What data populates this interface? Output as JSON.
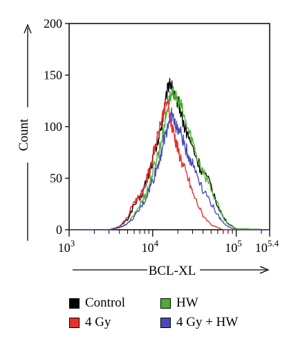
{
  "chart_data": {
    "type": "line",
    "title": "",
    "xlabel": "BCL-XL",
    "ylabel": "Count",
    "x_scale": "log",
    "xlim": [
      1000,
      251189
    ],
    "ylim": [
      0,
      200
    ],
    "y_ticks": [
      0,
      50,
      100,
      150,
      200
    ],
    "x_ticks": [
      {
        "value": 1000,
        "label": "10",
        "exponent": "3"
      },
      {
        "value": 10000,
        "label": "10",
        "exponent": "4"
      },
      {
        "value": 100000,
        "label": "10",
        "exponent": "5"
      },
      {
        "value": 251189,
        "label": "10",
        "exponent": "5.4"
      }
    ],
    "grid": false,
    "legend_position": "bottom",
    "series": [
      {
        "name": "Control",
        "color": "#000000",
        "x": [
          1000,
          3000,
          4000,
          5000,
          6000,
          7000,
          8000,
          9000,
          10000,
          11000,
          12000,
          13000,
          14000,
          15000,
          16000,
          17000,
          18000,
          19000,
          20000,
          22000,
          24000,
          27000,
          30000,
          35000,
          40000,
          50000,
          60000,
          70000,
          80000,
          100000,
          251189
        ],
        "y": [
          0,
          0,
          3,
          10,
          24,
          30,
          42,
          55,
          68,
          80,
          90,
          105,
          120,
          135,
          145,
          138,
          130,
          122,
          128,
          112,
          100,
          90,
          80,
          65,
          55,
          42,
          24,
          12,
          6,
          1,
          0
        ]
      },
      {
        "name": "HW",
        "color": "#4caf32",
        "x": [
          1000,
          3000,
          4000,
          5000,
          6000,
          7000,
          8000,
          9000,
          10000,
          11000,
          12000,
          13000,
          14000,
          15000,
          16000,
          17000,
          18000,
          19000,
          20000,
          22000,
          24000,
          27000,
          30000,
          35000,
          40000,
          50000,
          60000,
          70000,
          80000,
          100000,
          251189
        ],
        "y": [
          0,
          0,
          2,
          6,
          14,
          24,
          33,
          42,
          55,
          68,
          78,
          90,
          105,
          118,
          128,
          130,
          134,
          128,
          125,
          120,
          108,
          96,
          86,
          68,
          58,
          40,
          24,
          12,
          5,
          1,
          0
        ]
      },
      {
        "name": "4 Gy",
        "color": "#e53030",
        "x": [
          1000,
          3000,
          4000,
          5000,
          6000,
          7000,
          8000,
          9000,
          10000,
          11000,
          12000,
          13000,
          14000,
          15000,
          16000,
          17000,
          18000,
          19000,
          20000,
          22000,
          24000,
          27000,
          30000,
          35000,
          40000,
          50000,
          60000,
          70000,
          80000,
          100000,
          251189
        ],
        "y": [
          0,
          0,
          3,
          12,
          28,
          32,
          42,
          55,
          70,
          84,
          96,
          110,
          118,
          125,
          110,
          100,
          94,
          85,
          78,
          68,
          58,
          48,
          36,
          24,
          14,
          5,
          2,
          0,
          0,
          0,
          0
        ]
      },
      {
        "name": "4 Gy + HW",
        "color": "#4a4ab8",
        "x": [
          1000,
          3000,
          4000,
          5000,
          6000,
          7000,
          8000,
          9000,
          10000,
          11000,
          12000,
          13000,
          14000,
          15000,
          16000,
          17000,
          18000,
          19000,
          20000,
          22000,
          24000,
          27000,
          30000,
          35000,
          40000,
          50000,
          60000,
          70000,
          80000,
          100000,
          251189
        ],
        "y": [
          0,
          0,
          2,
          6,
          12,
          20,
          28,
          38,
          48,
          58,
          68,
          80,
          90,
          100,
          108,
          112,
          106,
          100,
          98,
          92,
          82,
          72,
          64,
          52,
          40,
          26,
          14,
          7,
          3,
          0,
          0
        ]
      }
    ]
  }
}
